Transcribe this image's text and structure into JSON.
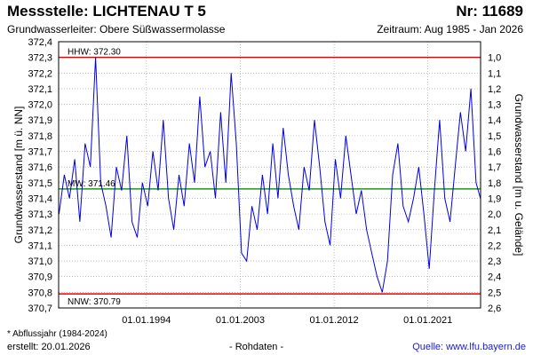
{
  "header": {
    "title": "Messstelle: LICHTENAU T 5",
    "number": "Nr: 11689",
    "aquifer": "Grundwasserleiter:   Obere Süßwassermolasse",
    "period": "Zeitraum: Aug 1985 - Jan 2026"
  },
  "footer": {
    "footnote": "* Abflussjahr (1984-2024)",
    "created": "erstellt:  20.01.2026",
    "raw_data": "- Rohdaten -",
    "source": "Quelle: www.lfu.bayern.de"
  },
  "colors": {
    "series": "#0000e6",
    "hhw": "#e60000",
    "nnw": "#e60000",
    "mw": "#1a9a1a",
    "grid": "#9a9a9a"
  },
  "chart_data": {
    "type": "line",
    "ylabel": "Grundwasserstand [m ü. NN]",
    "ylabel_right": "Grundwasserstand [m u. Gelände]",
    "ylim": [
      370.7,
      372.4
    ],
    "yticks": [
      "372,4",
      "372,3",
      "372,2",
      "372,1",
      "372,0",
      "371,9",
      "371,8",
      "371,7",
      "371,6",
      "371,5",
      "371,4",
      "371,3",
      "371,2",
      "371,1",
      "371,0",
      "370,9",
      "370,8",
      "370,7"
    ],
    "yticks_right": [
      "1,0",
      "1,1",
      "1,2",
      "1,3",
      "1,4",
      "1,5",
      "1,6",
      "1,7",
      "1,8",
      "1,9",
      "2,0",
      "2,1",
      "2,2",
      "2,3",
      "2,4",
      "2,5",
      "2,6"
    ],
    "xlim": [
      "1985-08-01",
      "2026-01-20"
    ],
    "xticks": [
      "01.01.1994",
      "01.01.2003",
      "01.01.2012",
      "01.01.2021"
    ],
    "grid": true,
    "reference_lines": [
      {
        "label": "HHW: 372.30",
        "value": 372.3
      },
      {
        "label": "MW: 371.46",
        "value": 371.46
      },
      {
        "label": "NNW: 370.79",
        "value": 370.79
      }
    ],
    "series": [
      {
        "x": [
          "1985-08",
          "1986-02",
          "1986-08",
          "1987-02",
          "1987-08",
          "1988-02",
          "1988-08",
          "1989-02",
          "1989-08",
          "1990-02",
          "1990-08",
          "1991-02",
          "1991-08",
          "1992-02",
          "1992-08",
          "1993-02",
          "1993-08",
          "1994-02",
          "1994-08",
          "1995-02",
          "1995-08",
          "1996-02",
          "1996-08",
          "1997-02",
          "1997-08",
          "1998-02",
          "1998-08",
          "1999-02",
          "1999-08",
          "2000-02",
          "2000-08",
          "2001-02",
          "2001-08",
          "2002-02",
          "2002-08",
          "2003-02",
          "2003-08",
          "2004-02",
          "2004-08",
          "2005-02",
          "2005-08",
          "2006-02",
          "2006-08",
          "2007-02",
          "2007-08",
          "2008-02",
          "2008-08",
          "2009-02",
          "2009-08",
          "2010-02",
          "2010-08",
          "2011-02",
          "2011-08",
          "2012-02",
          "2012-08",
          "2013-02",
          "2013-08",
          "2014-02",
          "2014-08",
          "2015-02",
          "2015-08",
          "2016-02",
          "2016-08",
          "2017-02",
          "2017-08",
          "2018-02",
          "2018-08",
          "2019-02",
          "2019-08",
          "2020-02",
          "2020-08",
          "2021-02",
          "2021-08",
          "2022-02",
          "2022-08",
          "2023-02",
          "2023-08",
          "2024-02",
          "2024-08",
          "2025-02",
          "2025-08",
          "2026-01"
        ],
        "values": [
          371.3,
          371.55,
          371.4,
          371.65,
          371.25,
          371.75,
          371.6,
          372.3,
          371.5,
          371.35,
          371.15,
          371.6,
          371.45,
          371.8,
          371.25,
          371.15,
          371.5,
          371.35,
          371.7,
          371.45,
          371.9,
          371.4,
          371.2,
          371.55,
          371.35,
          371.75,
          371.5,
          372.05,
          371.6,
          371.7,
          371.4,
          371.95,
          371.5,
          372.2,
          371.75,
          371.05,
          371.0,
          371.35,
          371.2,
          371.55,
          371.3,
          371.75,
          371.4,
          371.85,
          371.55,
          371.35,
          371.2,
          371.6,
          371.45,
          371.9,
          371.6,
          371.25,
          371.1,
          371.65,
          371.4,
          371.8,
          371.55,
          371.3,
          371.45,
          371.2,
          371.05,
          370.9,
          370.8,
          371.0,
          371.55,
          371.75,
          371.35,
          371.25,
          371.4,
          371.6,
          371.3,
          370.95,
          371.45,
          371.9,
          371.4,
          371.25,
          371.6,
          371.95,
          371.7,
          372.1,
          371.5,
          371.4
        ]
      }
    ]
  }
}
